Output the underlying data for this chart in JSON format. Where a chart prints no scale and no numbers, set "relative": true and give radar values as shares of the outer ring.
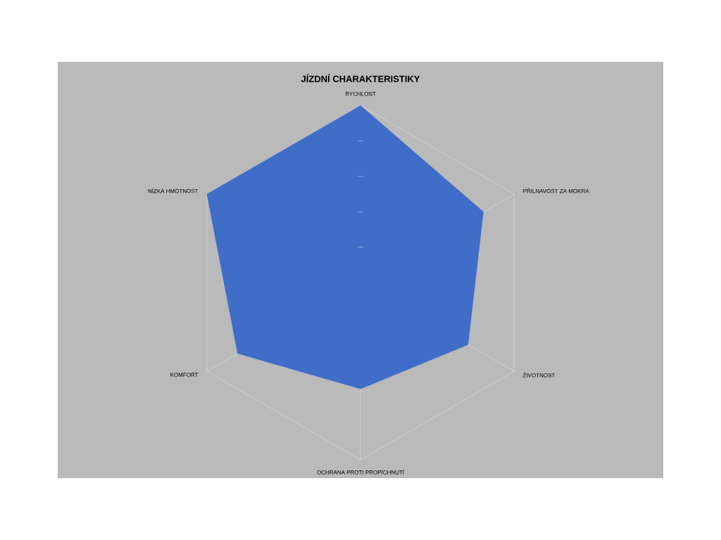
{
  "chart_data": {
    "type": "radar",
    "title": "JÍZDNÍ CHARAKTERISTIKY",
    "categories": [
      "RYCHLOST",
      "PŘILNAVOST ZA MOKRA",
      "ŽIVOTNOST",
      "OCHRANA PROTI PROPÍCHNUTÍ",
      "KOMFORT",
      "NÍZKÁ HMOTNOST"
    ],
    "series": [
      {
        "color": "#3f6dc8",
        "values": [
          1.0,
          0.8,
          0.7,
          0.6,
          0.8,
          1.0
        ]
      }
    ],
    "relative": true
  }
}
